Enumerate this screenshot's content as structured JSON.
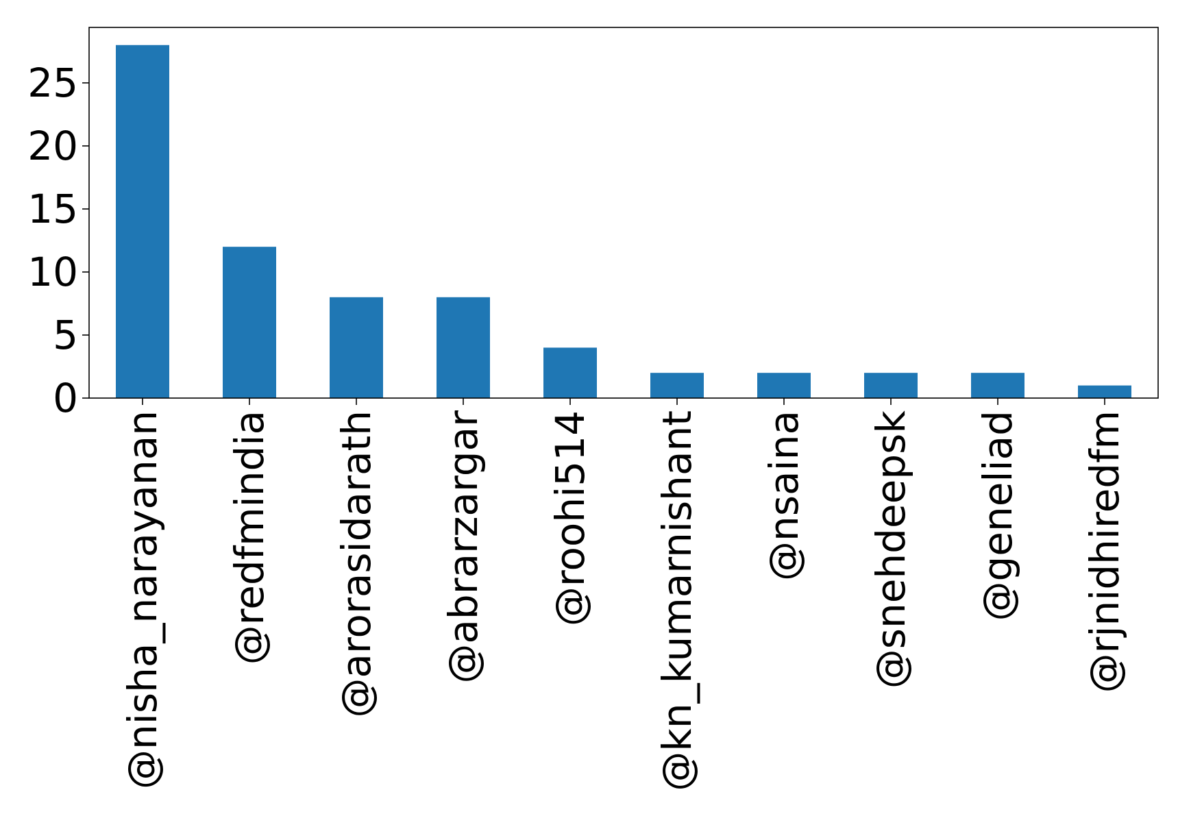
{
  "chart_data": {
    "type": "bar",
    "title": "",
    "xlabel": "",
    "ylabel": "",
    "categories": [
      "@nisha_narayanan",
      "@redfmindia",
      "@arorasidarath",
      "@abrarzargar",
      "@roohi514",
      "@kn_kumarnishant",
      "@nsaina",
      "@snehdeepsk",
      "@geneliad",
      "@rjnidhiredfm"
    ],
    "values": [
      28,
      12,
      8,
      8,
      4,
      2,
      2,
      2,
      2,
      1
    ],
    "ylim": [
      0,
      29.4
    ],
    "yticks": [
      0,
      5,
      10,
      15,
      20,
      25
    ],
    "grid": false,
    "legend": "none",
    "bar_color": "#1f77b4"
  }
}
